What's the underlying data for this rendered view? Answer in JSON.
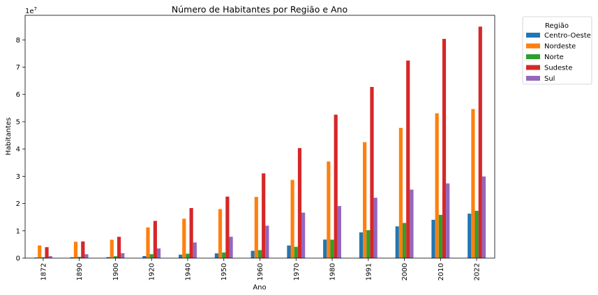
{
  "chart_data": {
    "type": "bar",
    "title": "Número de Habitantes por Região e Ano",
    "xlabel": "Ano",
    "ylabel": "Habitantes",
    "y_offset_label": "1e7",
    "categories": [
      "1872",
      "1890",
      "1900",
      "1920",
      "1940",
      "1950",
      "1960",
      "1970",
      "1980",
      "1991",
      "2000",
      "2010",
      "2022"
    ],
    "ylim": [
      0,
      89000000
    ],
    "yticks": [
      0,
      10000000,
      20000000,
      30000000,
      40000000,
      50000000,
      60000000,
      70000000,
      80000000
    ],
    "ytick_labels": [
      "0",
      "1",
      "2",
      "3",
      "4",
      "5",
      "6",
      "7",
      "8"
    ],
    "legend": {
      "title": "Região",
      "placement": "outside-right-top"
    },
    "grid": false,
    "series": [
      {
        "name": "Centro-Oeste",
        "color": "#1f77b4",
        "values": [
          220000,
          320000,
          370000,
          760000,
          1260000,
          1740000,
          2680000,
          4630000,
          6800000,
          9430000,
          11640000,
          14060000,
          16290000
        ]
      },
      {
        "name": "Nordeste",
        "color": "#ff7f0e",
        "values": [
          4640000,
          6000000,
          6750000,
          11250000,
          14430000,
          17970000,
          22430000,
          28680000,
          35420000,
          42500000,
          47740000,
          53080000,
          54640000
        ]
      },
      {
        "name": "Norte",
        "color": "#2ca02c",
        "values": [
          330000,
          480000,
          700000,
          1440000,
          1630000,
          2050000,
          2930000,
          4150000,
          6770000,
          10260000,
          12900000,
          15860000,
          17350000
        ]
      },
      {
        "name": "Sudeste",
        "color": "#d62728",
        "values": [
          4020000,
          6100000,
          7820000,
          13650000,
          18350000,
          22550000,
          31060000,
          40330000,
          52580000,
          62740000,
          72410000,
          80360000,
          84850000
        ]
      },
      {
        "name": "Sul",
        "color": "#9467bd",
        "values": [
          720000,
          1430000,
          1800000,
          3540000,
          5740000,
          7840000,
          11890000,
          16680000,
          19090000,
          22130000,
          25110000,
          27390000,
          29930000
        ]
      }
    ]
  }
}
